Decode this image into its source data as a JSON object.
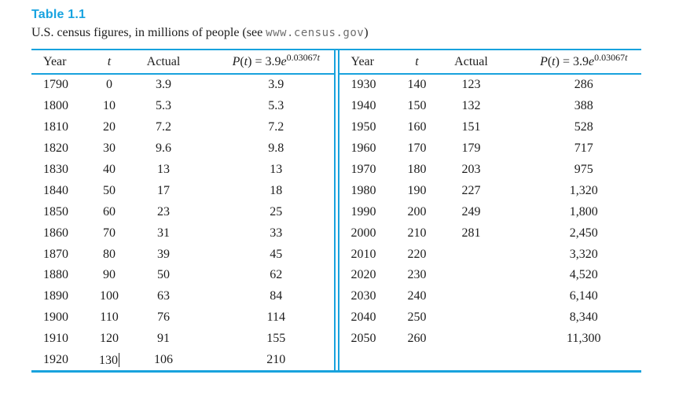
{
  "title": "Table 1.1",
  "subtitle": {
    "before_url": "U.S. census figures, in millions of people (see ",
    "url": "www.census.gov",
    "after_url": ")"
  },
  "colors": {
    "accent_blue_rules": "#18a2dd",
    "title_blue": "#17a3e0",
    "text": "#1d1d1d"
  },
  "table": {
    "columns": {
      "year": "Year",
      "t": "t",
      "actual": "Actual",
      "formula": {
        "fn": "P",
        "open": "(",
        "var": "t",
        "close": ")",
        "eq": " = ",
        "coef": "3.9",
        "base": "e",
        "exp_num": "0.03067",
        "exp_var": "t"
      }
    },
    "left_rows": [
      [
        "1790",
        "0",
        "3.9",
        "3.9"
      ],
      [
        "1800",
        "10",
        "5.3",
        "5.3"
      ],
      [
        "1810",
        "20",
        "7.2",
        "7.2"
      ],
      [
        "1820",
        "30",
        "9.6",
        "9.8"
      ],
      [
        "1830",
        "40",
        "13",
        "13"
      ],
      [
        "1840",
        "50",
        "17",
        "18"
      ],
      [
        "1850",
        "60",
        "23",
        "25"
      ],
      [
        "1860",
        "70",
        "31",
        "33"
      ],
      [
        "1870",
        "80",
        "39",
        "45"
      ],
      [
        "1880",
        "90",
        "50",
        "62"
      ],
      [
        "1890",
        "100",
        "63",
        "84"
      ],
      [
        "1900",
        "110",
        "76",
        "114"
      ],
      [
        "1910",
        "120",
        "91",
        "155"
      ],
      [
        "1920",
        "130",
        "106",
        "210"
      ]
    ],
    "right_rows": [
      [
        "1930",
        "140",
        "123",
        "286"
      ],
      [
        "1940",
        "150",
        "132",
        "388"
      ],
      [
        "1950",
        "160",
        "151",
        "528"
      ],
      [
        "1960",
        "170",
        "179",
        "717"
      ],
      [
        "1970",
        "180",
        "203",
        "975"
      ],
      [
        "1980",
        "190",
        "227",
        "1,320"
      ],
      [
        "1990",
        "200",
        "249",
        "1,800"
      ],
      [
        "2000",
        "210",
        "281",
        "2,450"
      ],
      [
        "2010",
        "220",
        "",
        "3,320"
      ],
      [
        "2020",
        "230",
        "",
        "4,520"
      ],
      [
        "2030",
        "240",
        "",
        "6,140"
      ],
      [
        "2040",
        "250",
        "",
        "8,340"
      ],
      [
        "2050",
        "260",
        "",
        "11,300"
      ]
    ],
    "caret": {
      "side": "left",
      "row": 13,
      "col": 1
    }
  }
}
